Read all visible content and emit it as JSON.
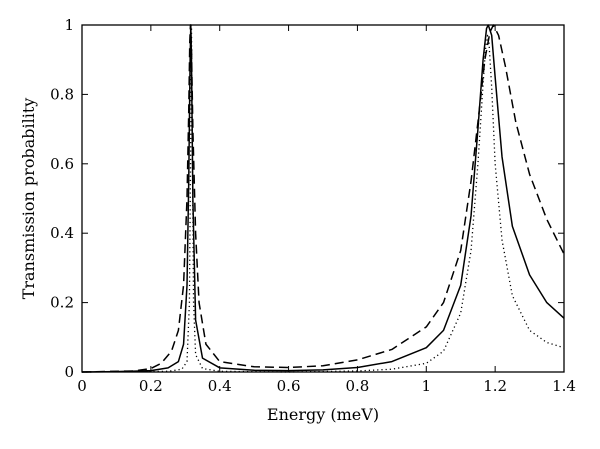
{
  "chart_data": {
    "type": "line",
    "title": "",
    "xlabel": "Energy (meV)",
    "ylabel": "Transmission probability",
    "xlim": [
      0,
      1.4
    ],
    "ylim": [
      0,
      1
    ],
    "xticks": [
      "0",
      "0.2",
      "0.4",
      "0.6",
      "0.8",
      "1",
      "1.2",
      "1.4"
    ],
    "yticks": [
      "0",
      "0.2",
      "0.4",
      "0.6",
      "0.8",
      "1"
    ],
    "grid": false,
    "legend": "none",
    "series": [
      {
        "style": "solid",
        "color": "#000000",
        "points": [
          [
            0,
            0
          ],
          [
            0.1,
            0.001
          ],
          [
            0.2,
            0.004
          ],
          [
            0.25,
            0.012
          ],
          [
            0.28,
            0.03
          ],
          [
            0.295,
            0.08
          ],
          [
            0.305,
            0.25
          ],
          [
            0.31,
            0.55
          ],
          [
            0.314,
            0.9
          ],
          [
            0.316,
            1.0
          ],
          [
            0.318,
            0.9
          ],
          [
            0.322,
            0.5
          ],
          [
            0.33,
            0.15
          ],
          [
            0.35,
            0.04
          ],
          [
            0.4,
            0.012
          ],
          [
            0.5,
            0.005
          ],
          [
            0.6,
            0.004
          ],
          [
            0.7,
            0.006
          ],
          [
            0.8,
            0.013
          ],
          [
            0.9,
            0.03
          ],
          [
            1.0,
            0.07
          ],
          [
            1.05,
            0.12
          ],
          [
            1.1,
            0.25
          ],
          [
            1.13,
            0.45
          ],
          [
            1.15,
            0.7
          ],
          [
            1.165,
            0.9
          ],
          [
            1.175,
            0.99
          ],
          [
            1.18,
            1.0
          ],
          [
            1.19,
            0.97
          ],
          [
            1.2,
            0.85
          ],
          [
            1.22,
            0.62
          ],
          [
            1.25,
            0.42
          ],
          [
            1.3,
            0.28
          ],
          [
            1.35,
            0.2
          ],
          [
            1.4,
            0.155
          ]
        ]
      },
      {
        "style": "dashed",
        "color": "#000000",
        "points": [
          [
            0,
            0
          ],
          [
            0.15,
            0.003
          ],
          [
            0.2,
            0.01
          ],
          [
            0.23,
            0.025
          ],
          [
            0.26,
            0.06
          ],
          [
            0.28,
            0.12
          ],
          [
            0.295,
            0.25
          ],
          [
            0.305,
            0.5
          ],
          [
            0.31,
            0.75
          ],
          [
            0.313,
            0.95
          ],
          [
            0.315,
            1.0
          ],
          [
            0.318,
            0.93
          ],
          [
            0.322,
            0.7
          ],
          [
            0.33,
            0.4
          ],
          [
            0.34,
            0.2
          ],
          [
            0.36,
            0.08
          ],
          [
            0.4,
            0.03
          ],
          [
            0.5,
            0.015
          ],
          [
            0.6,
            0.013
          ],
          [
            0.7,
            0.018
          ],
          [
            0.8,
            0.035
          ],
          [
            0.9,
            0.065
          ],
          [
            1.0,
            0.13
          ],
          [
            1.05,
            0.2
          ],
          [
            1.1,
            0.35
          ],
          [
            1.13,
            0.55
          ],
          [
            1.15,
            0.72
          ],
          [
            1.17,
            0.9
          ],
          [
            1.185,
            0.98
          ],
          [
            1.195,
            1.0
          ],
          [
            1.21,
            0.97
          ],
          [
            1.23,
            0.88
          ],
          [
            1.26,
            0.72
          ],
          [
            1.3,
            0.57
          ],
          [
            1.35,
            0.44
          ],
          [
            1.4,
            0.34
          ]
        ]
      },
      {
        "style": "dotted",
        "color": "#000000",
        "points": [
          [
            0,
            0
          ],
          [
            0.25,
            0.002
          ],
          [
            0.29,
            0.008
          ],
          [
            0.305,
            0.03
          ],
          [
            0.312,
            0.2
          ],
          [
            0.316,
            0.7
          ],
          [
            0.318,
            1.0
          ],
          [
            0.32,
            0.7
          ],
          [
            0.324,
            0.2
          ],
          [
            0.33,
            0.05
          ],
          [
            0.35,
            0.01
          ],
          [
            0.4,
            0.002
          ],
          [
            0.6,
            0.0
          ],
          [
            0.8,
            0.003
          ],
          [
            0.9,
            0.008
          ],
          [
            1.0,
            0.025
          ],
          [
            1.05,
            0.06
          ],
          [
            1.1,
            0.17
          ],
          [
            1.13,
            0.35
          ],
          [
            1.15,
            0.6
          ],
          [
            1.165,
            0.83
          ],
          [
            1.172,
            0.93
          ],
          [
            1.178,
            0.97
          ],
          [
            1.182,
            0.95
          ],
          [
            1.19,
            0.82
          ],
          [
            1.2,
            0.6
          ],
          [
            1.22,
            0.38
          ],
          [
            1.25,
            0.22
          ],
          [
            1.3,
            0.12
          ],
          [
            1.35,
            0.085
          ],
          [
            1.4,
            0.07
          ]
        ]
      }
    ]
  }
}
